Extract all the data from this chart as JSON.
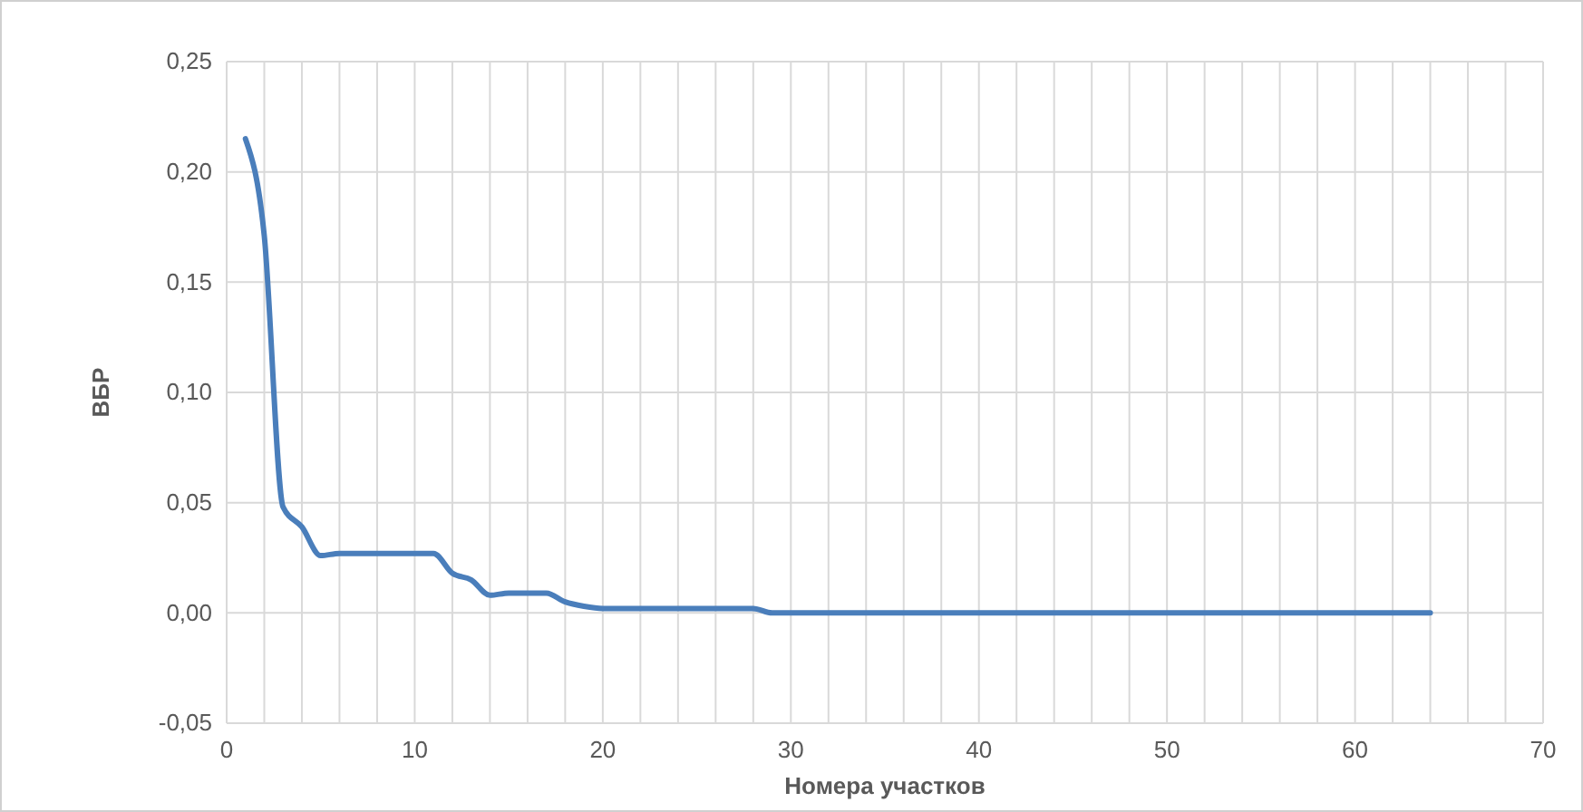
{
  "chart_data": {
    "type": "line",
    "xlabel": "Номера участков",
    "ylabel": "ВБР",
    "x": [
      1,
      2,
      3,
      4,
      5,
      6,
      7,
      8,
      9,
      10,
      11,
      12,
      13,
      14,
      15,
      16,
      17,
      18,
      19,
      20,
      21,
      22,
      23,
      24,
      25,
      26,
      27,
      28,
      29,
      30,
      31,
      32,
      33,
      34,
      35,
      36,
      37,
      38,
      39,
      40,
      41,
      42,
      43,
      44,
      45,
      46,
      47,
      48,
      49,
      50,
      51,
      52,
      53,
      54,
      55,
      56,
      57,
      58,
      59,
      60,
      61,
      62,
      63,
      64
    ],
    "series": [
      {
        "color": "#4a7ebb",
        "values": [
          0.215,
          0.171,
          0.048,
          0.039,
          0.026,
          0.027,
          0.027,
          0.027,
          0.027,
          0.027,
          0.027,
          0.018,
          0.015,
          0.008,
          0.009,
          0.009,
          0.009,
          0.005,
          0.003,
          0.002,
          0.002,
          0.002,
          0.002,
          0.002,
          0.002,
          0.002,
          0.002,
          0.002,
          0,
          0,
          0,
          0,
          0,
          0,
          0,
          0,
          0,
          0,
          0,
          0,
          0,
          0,
          0,
          0,
          0,
          0,
          0,
          0,
          0,
          0,
          0,
          0,
          0,
          0,
          0,
          0,
          0,
          0,
          0,
          0,
          0,
          0,
          0,
          0
        ]
      }
    ],
    "xlim": [
      0,
      70
    ],
    "xticks": [
      0,
      {
        "value": 2,
        "label": null
      },
      {
        "value": 4,
        "label": null
      },
      {
        "value": 6,
        "label": null
      },
      {
        "value": 8,
        "label": null
      },
      10,
      {
        "value": 12,
        "label": null
      },
      {
        "value": 14,
        "label": null
      },
      {
        "value": 16,
        "label": null
      },
      {
        "value": 18,
        "label": null
      },
      20,
      {
        "value": 22,
        "label": null
      },
      {
        "value": 24,
        "label": null
      },
      {
        "value": 26,
        "label": null
      },
      {
        "value": 28,
        "label": null
      },
      30,
      {
        "value": 32,
        "label": null
      },
      {
        "value": 34,
        "label": null
      },
      {
        "value": 36,
        "label": null
      },
      {
        "value": 38,
        "label": null
      },
      40,
      {
        "value": 42,
        "label": null
      },
      {
        "value": 44,
        "label": null
      },
      {
        "value": 46,
        "label": null
      },
      {
        "value": 48,
        "label": null
      },
      50,
      {
        "value": 52,
        "label": null
      },
      {
        "value": 54,
        "label": null
      },
      {
        "value": 56,
        "label": null
      },
      {
        "value": 58,
        "label": null
      },
      60,
      {
        "value": 62,
        "label": null
      },
      {
        "value": 64,
        "label": null
      },
      {
        "value": 66,
        "label": null
      },
      {
        "value": 68,
        "label": null
      },
      70
    ],
    "ylim": [
      -0.05,
      0.25
    ],
    "yticks": [
      {
        "value": -0.05,
        "label": "-0,05"
      },
      {
        "value": 0,
        "label": "0,00"
      },
      {
        "value": 0.05,
        "label": "0,05"
      },
      {
        "value": 0.1,
        "label": "0,10"
      },
      {
        "value": 0.15,
        "label": "0,15"
      },
      {
        "value": 0.2,
        "label": "0,20"
      },
      {
        "value": 0.25,
        "label": "0,25"
      }
    ],
    "grid": true,
    "marker": "none",
    "line_style": "solid"
  }
}
